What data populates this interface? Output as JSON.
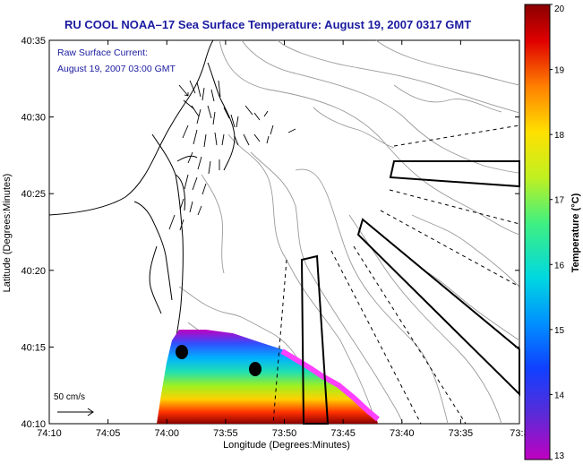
{
  "title": "RU COOL  NOAA–17  Sea Surface Temperature:  August 19, 2007 0317 GMT",
  "annotation": {
    "line1": "Raw Surface Current:",
    "line2": "August 19, 2007 03:00 GMT"
  },
  "x_axis": {
    "label": "Longitude (Degrees:Minutes)",
    "ticks": [
      "74:10",
      "74:05",
      "74:00",
      "73:55",
      "73:50",
      "73:45",
      "73:40",
      "73:35",
      "73:3"
    ]
  },
  "y_axis": {
    "label": "Latitude (Degrees:Minutes)",
    "ticks": [
      "40:35",
      "40:30",
      "40:25",
      "40:20",
      "40:15",
      "40:10"
    ]
  },
  "colorbar": {
    "label": "Temperature (°C)",
    "ticks": [
      "20",
      "19",
      "18",
      "17",
      "16",
      "15",
      "14",
      "13"
    ],
    "min": 13,
    "max": 20,
    "colors": [
      "#c000c0",
      "#4a2bd8",
      "#1040ff",
      "#00c8ff",
      "#20e0b0",
      "#80f020",
      "#ffff00",
      "#ffb000",
      "#ff5000",
      "#d00000",
      "#8a0000"
    ]
  },
  "scale_vector": {
    "label": "50 cm/s"
  },
  "colors": {
    "title_text": "#1a1aa0",
    "coastline": "#000000",
    "bathymetry": "#999999",
    "land_outline": "#000000"
  }
}
